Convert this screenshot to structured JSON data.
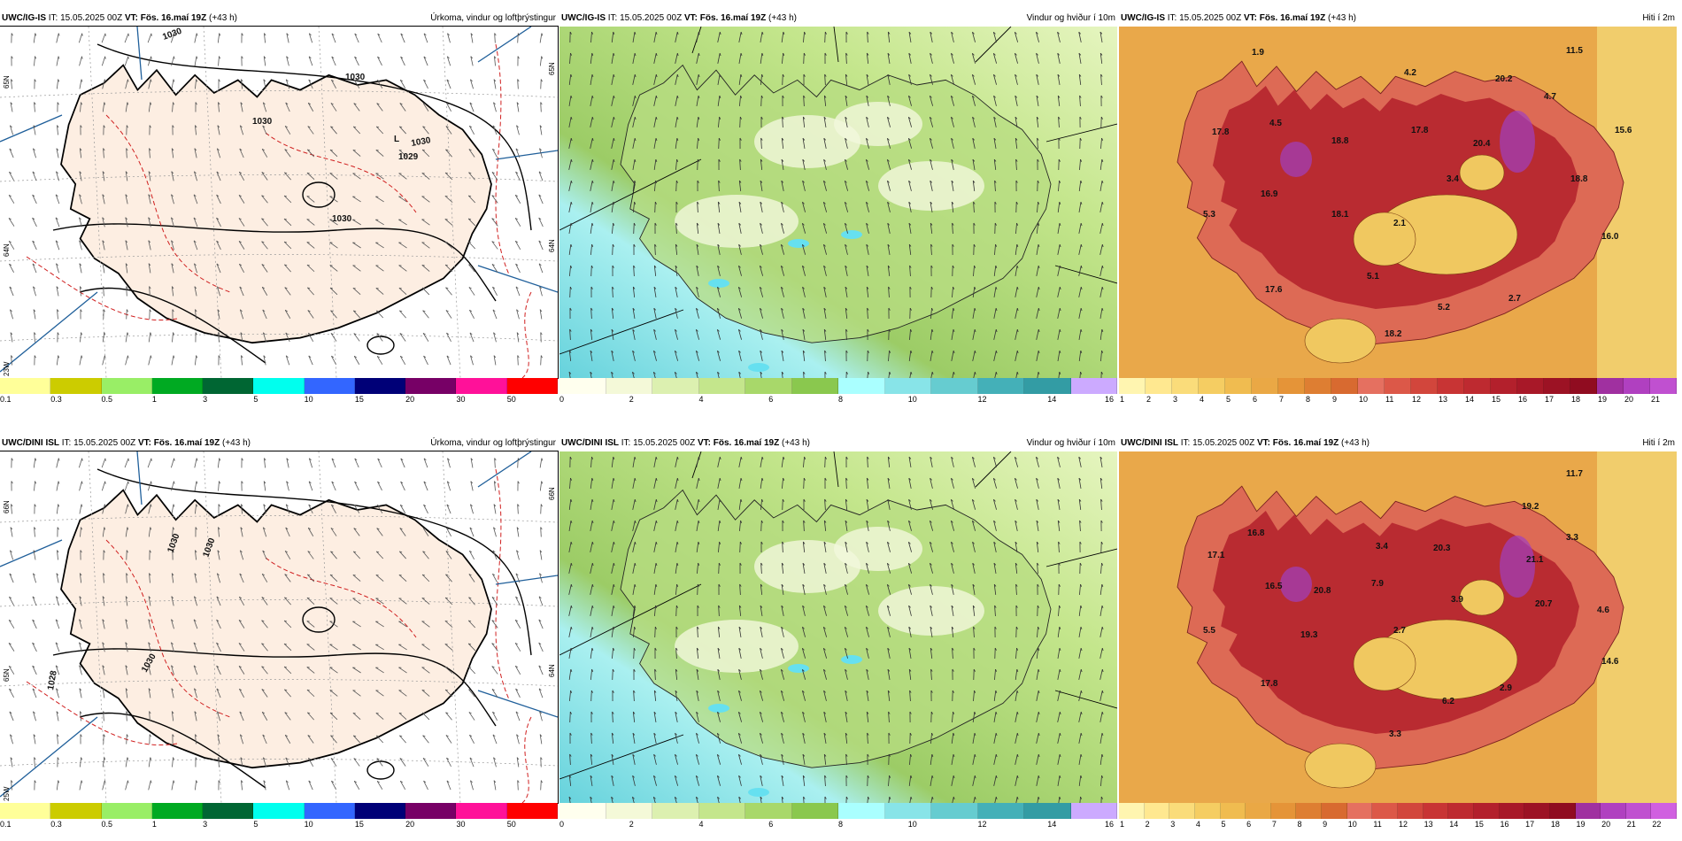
{
  "panels": [
    {
      "model": "UWC/IG-IS",
      "it": "IT: 15.05.2025 00Z",
      "vt": "VT: Fös. 16.maí 19Z",
      "lead": "(+43 h)",
      "title": "Úrkoma, vindur og loftþrýstingur",
      "type": "precip",
      "colors": [
        "#ffff99",
        "#cccc00",
        "#99ee66",
        "#00aa22",
        "#006633",
        "#00ffee",
        "#3366ff",
        "#000077",
        "#770066",
        "#ff1199",
        "#ff0000"
      ],
      "ticks": [
        "0.1",
        "0.3",
        "0.5",
        "1",
        "3",
        "5",
        "10",
        "15",
        "20",
        "30",
        "50"
      ],
      "map_labels": [
        {
          "t": "1030",
          "kind": "isobar"
        },
        {
          "t": "1030",
          "kind": "isobar"
        },
        {
          "t": "1030",
          "kind": "isobar"
        },
        {
          "t": "1030",
          "kind": "isobar"
        },
        {
          "t": "1030",
          "kind": "isobar"
        },
        {
          "t": "L",
          "kind": "low"
        },
        {
          "t": "1029",
          "kind": "low"
        }
      ],
      "lat_labels": [
        "65N",
        "64N",
        "65N",
        "64N",
        "23W"
      ]
    },
    {
      "model": "UWC/IG-IS",
      "it": "IT: 15.05.2025 00Z",
      "vt": "VT: Fös. 16.maí 19Z",
      "lead": "(+43 h)",
      "title": "Vindur og hviður í 10m",
      "type": "wind",
      "colors": [
        "#ffffee",
        "#f4f9d8",
        "#dcf0b0",
        "#c4e68c",
        "#a8d86a",
        "#8ac84e",
        "#aaffff",
        "#88e4e8",
        "#66ccd0",
        "#44b0b8",
        "#339ca4",
        "#ccaaff"
      ],
      "ticks": [
        "0",
        "2",
        "4",
        "6",
        "8",
        "10",
        "12",
        "14",
        "16"
      ],
      "map_labels": []
    },
    {
      "model": "UWC/IG-IS",
      "it": "IT: 15.05.2025 00Z",
      "vt": "VT: Fös. 16.maí 19Z",
      "lead": "(+43 h)",
      "title": "Hiti í 2m",
      "type": "temp",
      "colors": [
        "#fff5b0",
        "#ffe890",
        "#fadc7a",
        "#f5cd62",
        "#f0bc50",
        "#eaa845",
        "#e59438",
        "#de7e32",
        "#d86a30",
        "#e57060",
        "#dc5848",
        "#d2463c",
        "#c83434",
        "#be2a30",
        "#b3202c",
        "#a81828",
        "#9c1224",
        "#900c20",
        "#a030a0",
        "#b040c0",
        "#c050d0"
      ],
      "ticks": [
        "1",
        "2",
        "3",
        "4",
        "5",
        "6",
        "7",
        "8",
        "9",
        "10",
        "11",
        "12",
        "13",
        "14",
        "15",
        "16",
        "17",
        "18",
        "19",
        "20",
        "21"
      ],
      "map_labels": [
        {
          "t": "11.5"
        },
        {
          "t": "1.9"
        },
        {
          "t": "4.2"
        },
        {
          "t": "20.2"
        },
        {
          "t": "4.7"
        },
        {
          "t": "17.8"
        },
        {
          "t": "4.5"
        },
        {
          "t": "18.8"
        },
        {
          "t": "17.8"
        },
        {
          "t": "20.4"
        },
        {
          "t": "15.6"
        },
        {
          "t": "16.9"
        },
        {
          "t": "3.4"
        },
        {
          "t": "18.8"
        },
        {
          "t": "5.3"
        },
        {
          "t": "18.1"
        },
        {
          "t": "2.1"
        },
        {
          "t": "16.0"
        },
        {
          "t": "5.1"
        },
        {
          "t": "17.6"
        },
        {
          "t": "5.2"
        },
        {
          "t": "2.7"
        },
        {
          "t": "18.2"
        }
      ]
    },
    {
      "model": "UWC/DINI ISL",
      "it": "IT: 15.05.2025 00Z",
      "vt": "VT: Fös. 16.maí 19Z",
      "lead": "(+43 h)",
      "title": "Úrkoma, vindur og loftþrýstingur",
      "type": "precip",
      "colors": [
        "#ffff99",
        "#cccc00",
        "#99ee66",
        "#00aa22",
        "#006633",
        "#00ffee",
        "#3366ff",
        "#000077",
        "#770066",
        "#ff1199",
        "#ff0000"
      ],
      "ticks": [
        "0.1",
        "0.3",
        "0.5",
        "1",
        "3",
        "5",
        "10",
        "15",
        "20",
        "30",
        "50"
      ],
      "map_labels": [
        {
          "t": "1030",
          "kind": "isobar"
        },
        {
          "t": "1030",
          "kind": "isobar"
        },
        {
          "t": "1030",
          "kind": "isobar"
        },
        {
          "t": "1028",
          "kind": "isobar"
        }
      ],
      "lat_labels": [
        "66N",
        "65N",
        "66N",
        "64N",
        "25W"
      ]
    },
    {
      "model": "UWC/DINI ISL",
      "it": "IT: 15.05.2025 00Z",
      "vt": "VT: Fös. 16.maí 19Z",
      "lead": "(+43 h)",
      "title": "Vindur og hviður í 10m",
      "type": "wind",
      "colors": [
        "#ffffee",
        "#f4f9d8",
        "#dcf0b0",
        "#c4e68c",
        "#a8d86a",
        "#8ac84e",
        "#aaffff",
        "#88e4e8",
        "#66ccd0",
        "#44b0b8",
        "#339ca4",
        "#ccaaff"
      ],
      "ticks": [
        "0",
        "2",
        "4",
        "6",
        "8",
        "10",
        "12",
        "14",
        "16"
      ],
      "map_labels": []
    },
    {
      "model": "UWC/DINI ISL",
      "it": "IT: 15.05.2025 00Z",
      "vt": "VT: Fös. 16.maí 19Z",
      "lead": "(+43 h)",
      "title": "Hiti í 2m",
      "type": "temp",
      "colors": [
        "#fff5b0",
        "#ffe890",
        "#fadc7a",
        "#f5cd62",
        "#f0bc50",
        "#eaa845",
        "#e59438",
        "#de7e32",
        "#d86a30",
        "#e57060",
        "#dc5848",
        "#d2463c",
        "#c83434",
        "#be2a30",
        "#b3202c",
        "#a81828",
        "#9c1224",
        "#900c20",
        "#a030a0",
        "#b040c0",
        "#c050d0",
        "#d060e0"
      ],
      "ticks": [
        "1",
        "2",
        "3",
        "4",
        "5",
        "6",
        "7",
        "8",
        "9",
        "10",
        "11",
        "12",
        "13",
        "14",
        "15",
        "16",
        "17",
        "18",
        "19",
        "20",
        "21",
        "22"
      ],
      "map_labels": [
        {
          "t": "11.7"
        },
        {
          "t": "19.2"
        },
        {
          "t": "16.8"
        },
        {
          "t": "3.3"
        },
        {
          "t": "17.1"
        },
        {
          "t": "3.4"
        },
        {
          "t": "20.3"
        },
        {
          "t": "21.1"
        },
        {
          "t": "16.5"
        },
        {
          "t": "20.8"
        },
        {
          "t": "7.9"
        },
        {
          "t": "3.9"
        },
        {
          "t": "20.7"
        },
        {
          "t": "4.6"
        },
        {
          "t": "5.5"
        },
        {
          "t": "19.3"
        },
        {
          "t": "2.7"
        },
        {
          "t": "14.6"
        },
        {
          "t": "17.8"
        },
        {
          "t": "2.9"
        },
        {
          "t": "6.2"
        },
        {
          "t": "3.3"
        }
      ]
    }
  ]
}
